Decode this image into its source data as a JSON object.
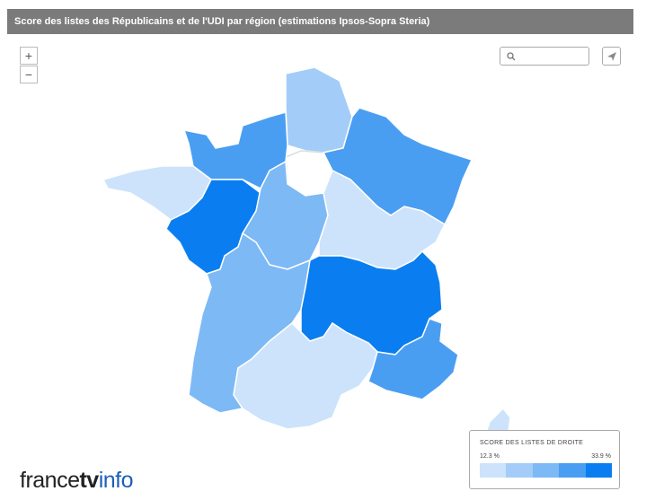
{
  "header": {
    "title": "Score des listes des Républicains et de l'UDI par région (estimations Ipsos-Sopra Steria)"
  },
  "zoom": {
    "in": "+",
    "out": "−"
  },
  "legend": {
    "title": "SCORE DES LISTES DE DROITE",
    "min_label": "12.3 %",
    "max_label": "33.9 %",
    "colors": [
      "#cce3fb",
      "#a3cdf8",
      "#7db9f5",
      "#4a9ef2",
      "#0a7ef0"
    ]
  },
  "logo": {
    "prefix": "france",
    "tv": "tv",
    "suffix": "info"
  }
}
